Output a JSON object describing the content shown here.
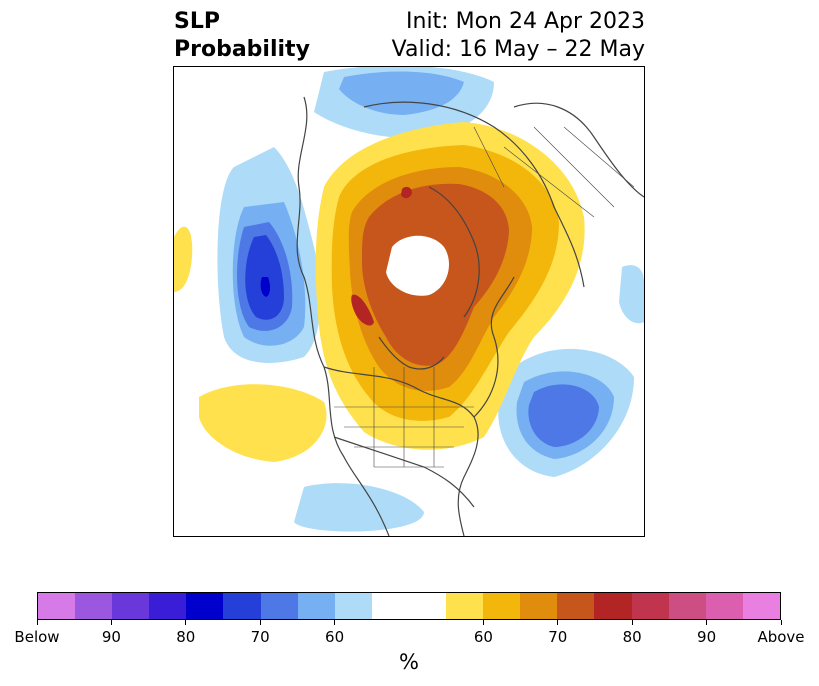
{
  "title": {
    "left_line1": "SLP",
    "left_line2": "Probability",
    "right_line1": "Init: Mon 24 Apr 2023",
    "right_line2": "Valid: 16 May – 22 May"
  },
  "map": {
    "description_icon": "globe-map-icon",
    "projection": "north-polar-stereographic"
  },
  "colorbar": {
    "unit": "%",
    "colors": [
      "#d67ae8",
      "#9b57e0",
      "#6a37da",
      "#3a1dd6",
      "#0000cd",
      "#2540d9",
      "#4d78e6",
      "#77b0f2",
      "#aedcf8",
      "#ffffff",
      "#ffffff",
      "#ffe14d",
      "#f3b70b",
      "#e08c0c",
      "#c7561d",
      "#b32424",
      "#c0344d",
      "#cd4e82",
      "#dc5faf",
      "#e97fe0"
    ],
    "labels": [
      "Below",
      "90",
      "80",
      "70",
      "60",
      "60",
      "70",
      "80",
      "90",
      "Above"
    ]
  },
  "colors": {
    "below_60": "#aedcf8",
    "below_70": "#77b0f2",
    "below_80": "#4d78e6",
    "below_90": "#2540d9",
    "below_strong": "#0000cd",
    "above_60": "#ffe14d",
    "above_70": "#f3b70b",
    "above_80": "#e08c0c",
    "above_90": "#c7561d",
    "above_strong": "#b32424",
    "coast": "#444444"
  }
}
